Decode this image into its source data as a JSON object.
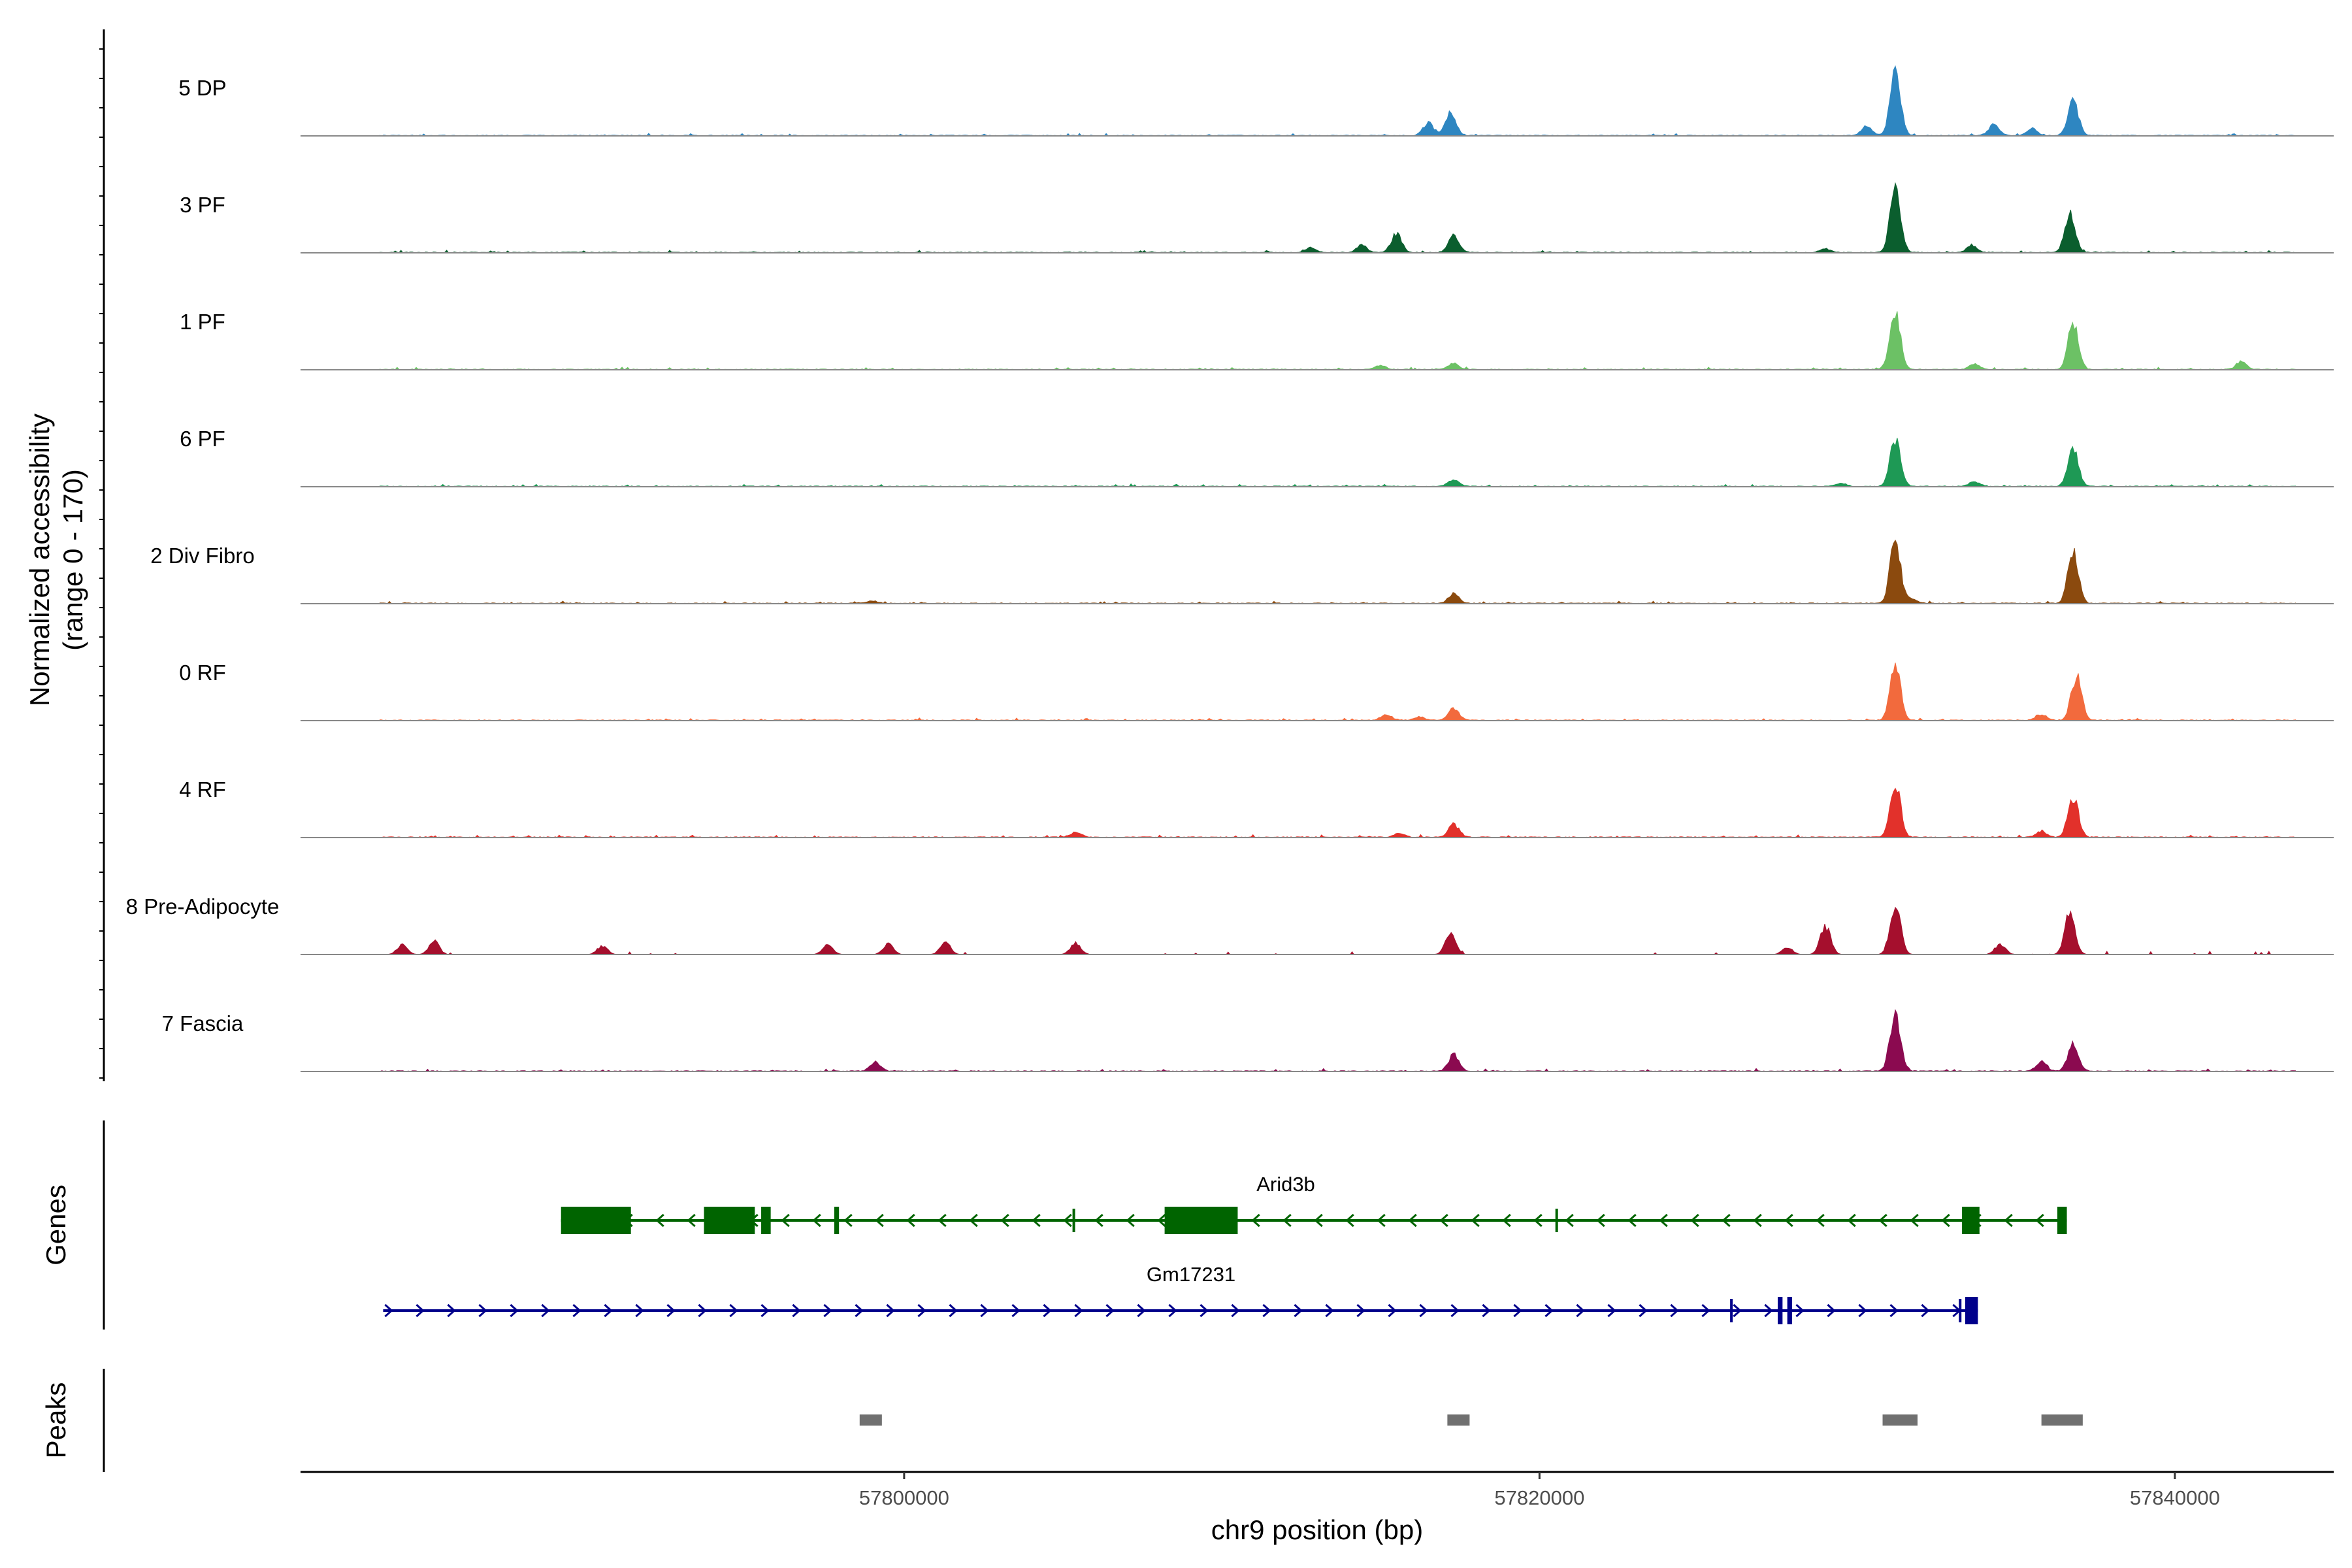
{
  "chart_data": {
    "type": "area",
    "title": "",
    "ylabel_line1": "Normalized accessibility",
    "ylabel_line2": "(range 0 - 170)",
    "y_range": [
      0,
      170
    ],
    "xlabel": "chr9 position (bp)",
    "xlim": [
      57781000,
      57845000
    ],
    "xticks": [
      {
        "value": 57800000,
        "label": "57800000"
      },
      {
        "value": 57820000,
        "label": "57820000"
      },
      {
        "value": 57840000,
        "label": "57840000"
      }
    ],
    "tracks": [
      {
        "name": "5 DP",
        "color": "#2e86c1",
        "peaks": [
          [
            57816500,
            28
          ],
          [
            57817200,
            48
          ],
          [
            57831200,
            130
          ],
          [
            57830300,
            20
          ],
          [
            57834300,
            22
          ],
          [
            57836800,
            75
          ],
          [
            57835500,
            15
          ]
        ]
      },
      {
        "name": "3 PF",
        "color": "#0b5e2e",
        "peaks": [
          [
            57814400,
            16
          ],
          [
            57815500,
            40
          ],
          [
            57817300,
            35
          ],
          [
            57812800,
            10
          ],
          [
            57831200,
            145
          ],
          [
            57833600,
            15
          ],
          [
            57836700,
            85
          ],
          [
            57829000,
            8
          ]
        ]
      },
      {
        "name": "1 PF",
        "color": "#6cc165",
        "peaks": [
          [
            57817300,
            12
          ],
          [
            57815000,
            8
          ],
          [
            57831200,
            122
          ],
          [
            57833700,
            12
          ],
          [
            57836800,
            98
          ],
          [
            57842100,
            15
          ]
        ]
      },
      {
        "name": "6 PF",
        "color": "#1e9955",
        "peaks": [
          [
            57817300,
            15
          ],
          [
            57831200,
            100
          ],
          [
            57833700,
            10
          ],
          [
            57836800,
            78
          ],
          [
            57829500,
            6
          ]
        ]
      },
      {
        "name": "2 Div Fibro",
        "color": "#8b4a0e",
        "peaks": [
          [
            57817300,
            20
          ],
          [
            57799000,
            5
          ],
          [
            57831200,
            132
          ],
          [
            57836800,
            115
          ],
          [
            57831700,
            10
          ]
        ]
      },
      {
        "name": "0 RF",
        "color": "#f26a3d",
        "peaks": [
          [
            57815200,
            12
          ],
          [
            57817300,
            25
          ],
          [
            57816200,
            8
          ],
          [
            57831200,
            122
          ],
          [
            57836900,
            92
          ],
          [
            57835800,
            12
          ]
        ]
      },
      {
        "name": "4 RF",
        "color": "#e2312b",
        "peaks": [
          [
            57817300,
            28
          ],
          [
            57805400,
            10
          ],
          [
            57815600,
            8
          ],
          [
            57831200,
            118
          ],
          [
            57836800,
            85
          ],
          [
            57835800,
            12
          ]
        ]
      },
      {
        "name": "8 Pre-Adipocyte",
        "color": "#a50f2d",
        "peaks": [
          [
            57784200,
            20
          ],
          [
            57785200,
            28
          ],
          [
            57790500,
            18
          ],
          [
            57797600,
            20
          ],
          [
            57799500,
            22
          ],
          [
            57801300,
            25
          ],
          [
            57805400,
            24
          ],
          [
            57817200,
            48
          ],
          [
            57829000,
            60
          ],
          [
            57831200,
            110
          ],
          [
            57834500,
            22
          ],
          [
            57836700,
            85
          ],
          [
            57827800,
            15
          ]
        ]
      },
      {
        "name": "7 Fascia",
        "color": "#8b0a50",
        "peaks": [
          [
            57799100,
            18
          ],
          [
            57817300,
            35
          ],
          [
            57831200,
            125
          ],
          [
            57836800,
            60
          ],
          [
            57835800,
            20
          ]
        ]
      }
    ],
    "genes_label": "Genes",
    "peaks_label": "Peaks",
    "genes": [
      {
        "name": "Arid3b",
        "strand": "-",
        "start": 57789200,
        "end": 57836600,
        "color": "#006400",
        "exons": [
          [
            57789200,
            57791400
          ],
          [
            57793700,
            57795300
          ],
          [
            57795500,
            57795800
          ],
          [
            57797800,
            57797950
          ],
          [
            57805300,
            57805350
          ],
          [
            57808200,
            57810500
          ],
          [
            57820500,
            57820550
          ],
          [
            57833300,
            57833850
          ],
          [
            57836300,
            57836600
          ]
        ]
      },
      {
        "name": "Gm17231",
        "strand": "+",
        "start": 57783600,
        "end": 57833800,
        "color": "#00008b",
        "exons": [
          [
            57826000,
            57826050
          ],
          [
            57827500,
            57827650
          ],
          [
            57827800,
            57827950
          ],
          [
            57833200,
            57833250
          ],
          [
            57833400,
            57833800
          ]
        ]
      }
    ],
    "peaks": [
      [
        57798600,
        57799300
      ],
      [
        57817100,
        57817800
      ],
      [
        57830800,
        57831900
      ],
      [
        57835800,
        57837100
      ]
    ]
  }
}
